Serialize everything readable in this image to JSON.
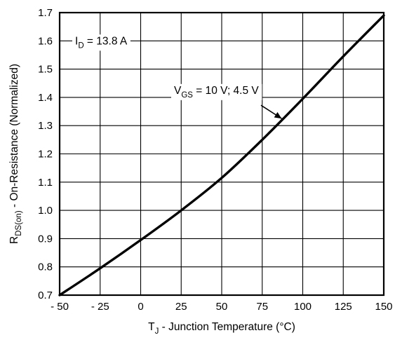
{
  "chart_data": {
    "type": "line",
    "xlabel": {
      "main": "T",
      "sub": "J",
      "rest": " - Junction Temperature (°C)"
    },
    "ylabel": {
      "main": "R",
      "sub": "DS(on)",
      "rest": " - On-Resistance (Normalized)"
    },
    "xlim": [
      -50,
      150
    ],
    "ylim": [
      0.7,
      1.7
    ],
    "grid": true,
    "x_ticks": [
      -50,
      -25,
      0,
      25,
      50,
      75,
      100,
      125,
      150
    ],
    "x_tick_labels": [
      "- 50",
      "- 25",
      "0",
      "25",
      "50",
      "75",
      "100",
      "125",
      "150"
    ],
    "y_ticks": [
      0.7,
      0.8,
      0.9,
      1.0,
      1.1,
      1.2,
      1.3,
      1.4,
      1.5,
      1.6,
      1.7
    ],
    "y_tick_labels": [
      "0.7",
      "0.8",
      "0.9",
      "1.0",
      "1.1",
      "1.2",
      "1.3",
      "1.4",
      "1.5",
      "1.6",
      "1.7"
    ],
    "series": [
      {
        "label": {
          "main": "V",
          "sub": "GS",
          "rest": " = 10 V; 4.5 V"
        },
        "color": "#000000",
        "x": [
          -50,
          -25,
          0,
          25,
          50,
          75,
          100,
          125,
          150
        ],
        "y": [
          0.7,
          0.795,
          0.895,
          1.0,
          1.115,
          1.25,
          1.395,
          1.545,
          1.69
        ]
      }
    ],
    "annotations": [
      {
        "main": "I",
        "sub": "D",
        "rest": " = 13.8 A"
      }
    ]
  }
}
